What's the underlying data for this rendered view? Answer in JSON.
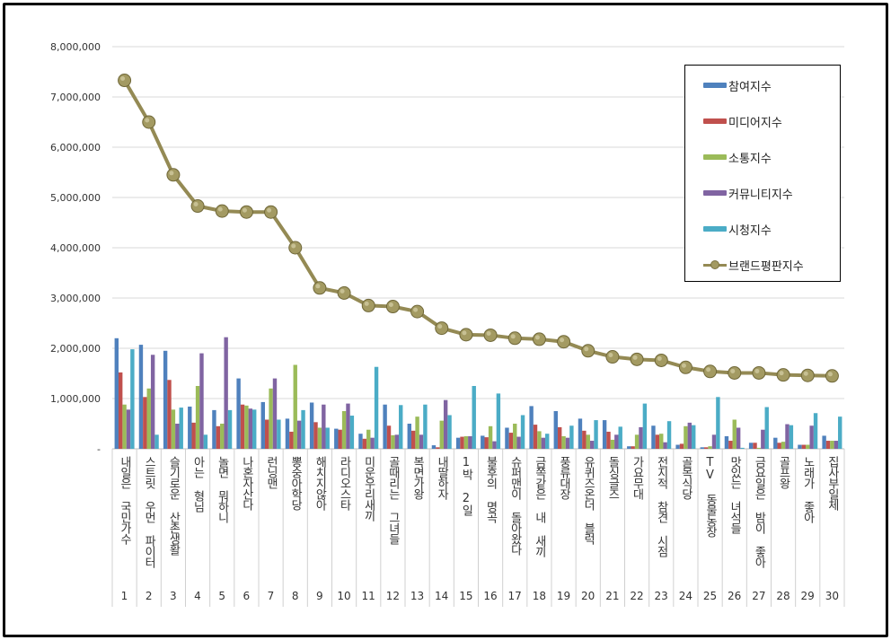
{
  "chart_data": {
    "type": "bar+line",
    "categories": [
      "내일은 국민가수",
      "스트릿 우먼 파이터",
      "슬기로운 산촌생활",
      "아는 형님",
      "놀면 뭐하니",
      "나혼자산다",
      "런닝맨",
      "뽕숭아학당",
      "해치지않아",
      "라디오스타",
      "미운우리새끼",
      "골때리는 그녀들",
      "복면가왕",
      "내딸하자",
      "1박 2일",
      "불후의 명곡",
      "슈퍼맨이 돌아왔다",
      "금쪽같은 내 새끼",
      "풍류대장",
      "유퀴즈온더 블럭",
      "돌싱글즈",
      "가요무대",
      "전지적 참견 시점",
      "골목식당",
      "TV 동물농장",
      "맛있는 녀석들",
      "금요일은 밤이 좋아",
      "골프왕",
      "노래가 좋아",
      "집사부일체"
    ],
    "ranks": [
      "1",
      "2",
      "3",
      "4",
      "5",
      "6",
      "7",
      "8",
      "9",
      "10",
      "11",
      "12",
      "13",
      "14",
      "15",
      "16",
      "17",
      "18",
      "19",
      "20",
      "21",
      "22",
      "23",
      "24",
      "25",
      "26",
      "27",
      "28",
      "29",
      "30"
    ],
    "ylim": [
      0,
      8000000
    ],
    "yticks": [
      "-",
      "1,000,000",
      "2,000,000",
      "3,000,000",
      "4,000,000",
      "5,000,000",
      "6,000,000",
      "7,000,000",
      "8,000,000"
    ],
    "grid": true,
    "legend_position": "top-right",
    "series": [
      {
        "name": "참여지수",
        "kind": "bar",
        "color": "#4f81bd",
        "values": [
          2200000,
          2070000,
          1950000,
          840000,
          770000,
          1400000,
          930000,
          600000,
          920000,
          400000,
          300000,
          880000,
          500000,
          70000,
          220000,
          260000,
          420000,
          850000,
          750000,
          600000,
          570000,
          50000,
          460000,
          80000,
          30000,
          250000,
          120000,
          220000,
          80000,
          260000
        ]
      },
      {
        "name": "미디어지수",
        "kind": "bar",
        "color": "#c0504d",
        "values": [
          1520000,
          1030000,
          1370000,
          520000,
          450000,
          880000,
          580000,
          340000,
          530000,
          380000,
          200000,
          460000,
          360000,
          30000,
          240000,
          230000,
          320000,
          480000,
          430000,
          360000,
          340000,
          50000,
          280000,
          100000,
          30000,
          160000,
          120000,
          120000,
          80000,
          160000
        ]
      },
      {
        "name": "소통지수",
        "kind": "bar",
        "color": "#9bbb59",
        "values": [
          880000,
          1200000,
          780000,
          1250000,
          500000,
          860000,
          1200000,
          1670000,
          420000,
          750000,
          380000,
          270000,
          640000,
          560000,
          250000,
          450000,
          500000,
          350000,
          250000,
          280000,
          180000,
          280000,
          300000,
          450000,
          50000,
          580000,
          20000,
          140000,
          80000,
          160000
        ]
      },
      {
        "name": "커뮤니티지수",
        "kind": "bar",
        "color": "#8064a2",
        "values": [
          780000,
          1870000,
          500000,
          1900000,
          2220000,
          800000,
          1400000,
          560000,
          880000,
          900000,
          220000,
          280000,
          280000,
          970000,
          250000,
          150000,
          240000,
          220000,
          220000,
          160000,
          280000,
          430000,
          130000,
          520000,
          280000,
          420000,
          380000,
          490000,
          460000,
          160000
        ]
      },
      {
        "name": "시청지수",
        "kind": "bar",
        "color": "#4bacc6",
        "values": [
          1980000,
          280000,
          820000,
          280000,
          770000,
          780000,
          580000,
          770000,
          420000,
          660000,
          1630000,
          870000,
          880000,
          670000,
          1250000,
          1100000,
          670000,
          300000,
          460000,
          570000,
          440000,
          900000,
          550000,
          470000,
          1030000,
          20000,
          830000,
          470000,
          710000,
          640000
        ]
      },
      {
        "name": "브랜드평판지수",
        "kind": "line",
        "color": "#948a54",
        "values": [
          7330000,
          6500000,
          5450000,
          4830000,
          4730000,
          4710000,
          4710000,
          4000000,
          3200000,
          3100000,
          2850000,
          2830000,
          2730000,
          2400000,
          2270000,
          2260000,
          2200000,
          2180000,
          2130000,
          1950000,
          1830000,
          1780000,
          1760000,
          1620000,
          1540000,
          1510000,
          1510000,
          1470000,
          1460000,
          1450000
        ]
      }
    ]
  }
}
